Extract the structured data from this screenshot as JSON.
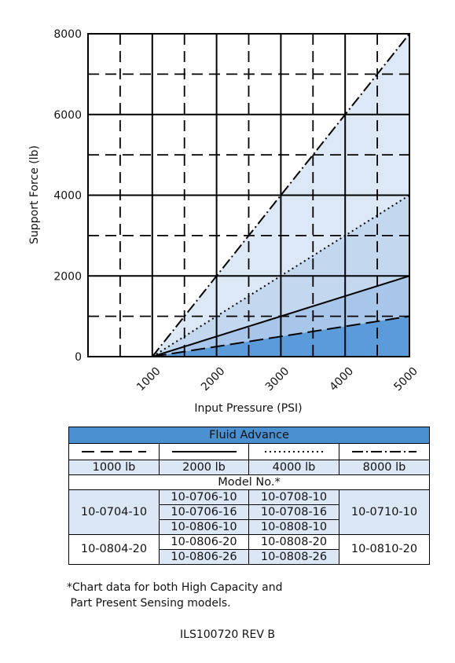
{
  "chart_data": {
    "type": "line",
    "xlabel": "Input Pressure (PSI)",
    "ylabel": "Support Force (lb)",
    "xlim": [
      0,
      5000
    ],
    "ylim": [
      0,
      8000
    ],
    "x_ticks": [
      "1000",
      "2000",
      "3000",
      "4000",
      "5000"
    ],
    "y_ticks": [
      "0",
      "2000",
      "4000",
      "6000",
      "8000"
    ],
    "grid": true,
    "series": [
      {
        "name": "1000 lb",
        "style": "dashed",
        "color": "#5b9bd9",
        "x": [
          1000,
          5000
        ],
        "y": [
          0,
          1000
        ]
      },
      {
        "name": "2000 lb",
        "style": "solid",
        "color": "#a8c6ea",
        "x": [
          1000,
          5000
        ],
        "y": [
          0,
          2000
        ]
      },
      {
        "name": "4000 lb",
        "style": "dotted",
        "color": "#c3d7ef",
        "x": [
          1000,
          5000
        ],
        "y": [
          0,
          4000
        ]
      },
      {
        "name": "8000 lb",
        "style": "dash-dot",
        "color": "#dce8f6",
        "x": [
          1000,
          5000
        ],
        "y": [
          0,
          8000
        ]
      }
    ]
  },
  "table": {
    "title": "Fluid Advance",
    "capacities": [
      "1000 lb",
      "2000 lb",
      "4000 lb",
      "8000 lb"
    ],
    "line_styles": [
      "dashed",
      "solid",
      "dotted",
      "dash-dot"
    ],
    "model_header": "Model No.*",
    "group1": {
      "col1": "10-0704-10",
      "col2": [
        "10-0706-10",
        "10-0706-16",
        "10-0806-10"
      ],
      "col3": [
        "10-0708-10",
        "10-0708-16",
        "10-0808-10"
      ],
      "col4": "10-0710-10"
    },
    "group2": {
      "col1": "10-0804-20",
      "col2": [
        "10-0806-20",
        "10-0806-26"
      ],
      "col3": [
        "10-0808-20",
        "10-0808-26"
      ],
      "col4": "10-0810-20"
    }
  },
  "footnote": [
    "*Chart data for both High Capacity and",
    " Part Present Sensing models."
  ],
  "doc_id": "ILS100720   REV B"
}
